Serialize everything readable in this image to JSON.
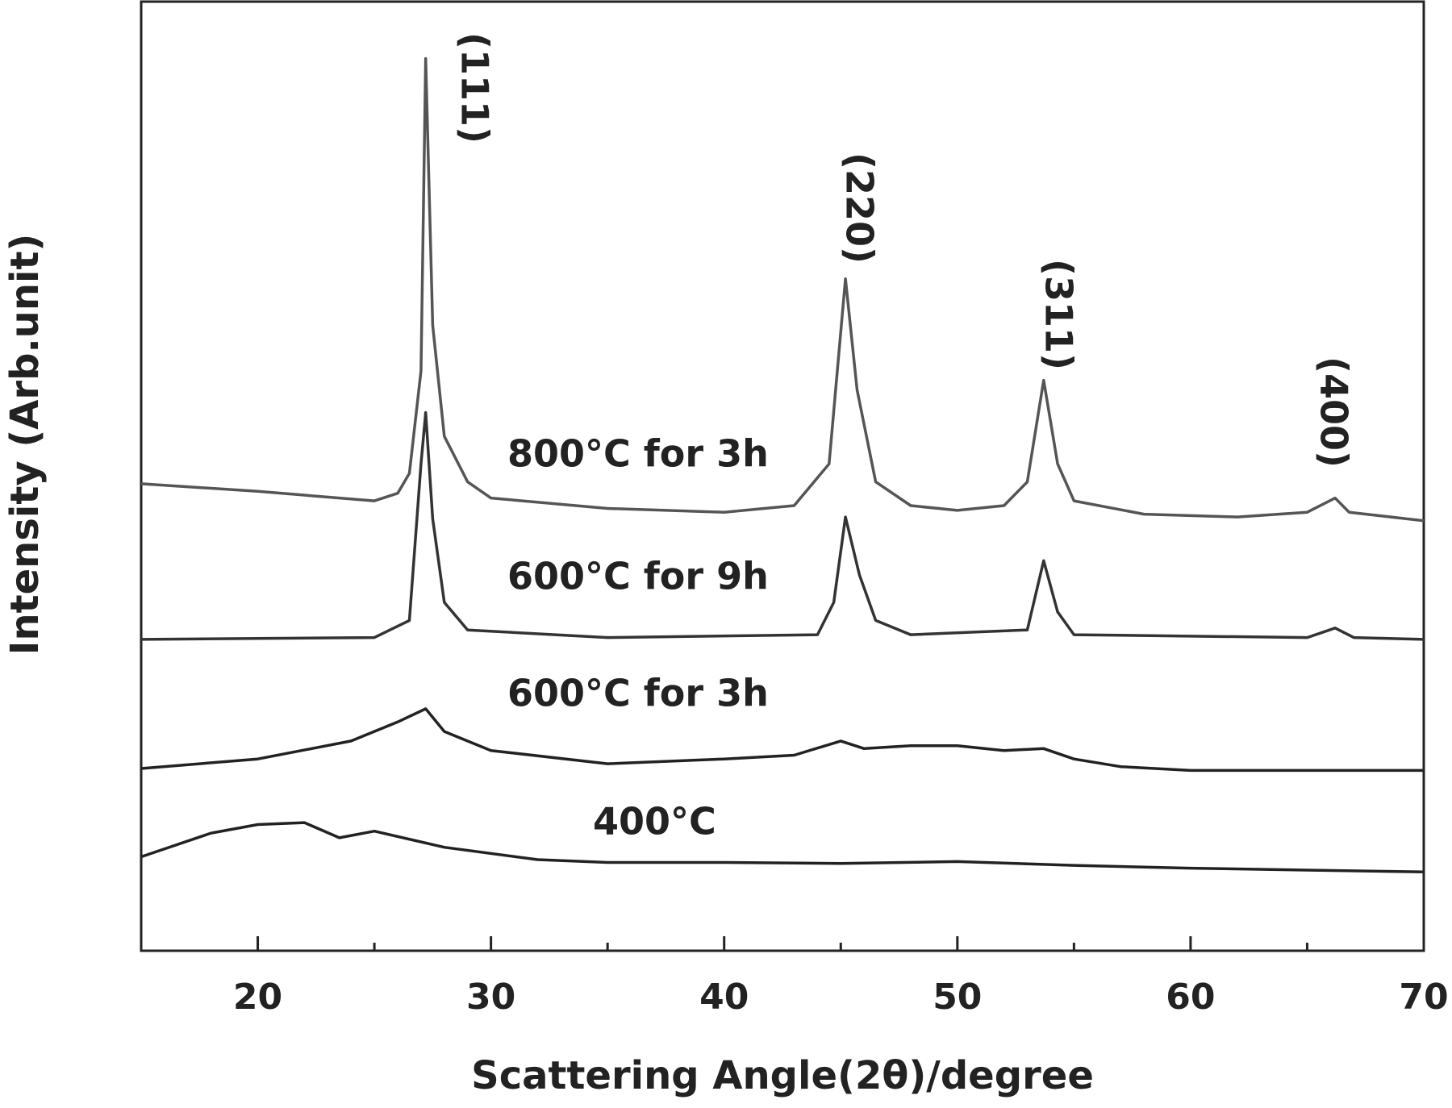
{
  "chart_data": {
    "type": "line",
    "xlabel": "Scattering Angle(2θ)/degree",
    "ylabel": "Intensity (Arb.unit)",
    "xlim": [
      15,
      70
    ],
    "ylim": [
      0,
      100
    ],
    "xticks": [
      20,
      30,
      40,
      50,
      60,
      70
    ],
    "xminorticks": [
      25,
      35,
      45,
      55,
      65
    ],
    "annotations": [
      "(111)",
      "(220)",
      "(311)",
      "(400)"
    ],
    "series": [
      {
        "name": "800°C for 3h",
        "color": "#555555",
        "x": [
          15,
          20,
          25,
          26,
          26.5,
          27,
          27.2,
          27.5,
          28,
          29,
          30,
          35,
          40,
          43,
          44.5,
          45.2,
          45.7,
          46.5,
          48,
          50,
          52,
          53,
          53.7,
          54.3,
          55,
          58,
          62,
          65,
          66.2,
          66.8,
          70
        ],
        "values": [
          49.2,
          48.4,
          47.4,
          48.2,
          50.3,
          61.1,
          94.0,
          65.9,
          54.2,
          49.4,
          47.7,
          46.6,
          46.2,
          46.9,
          51.3,
          70.8,
          59.1,
          49.4,
          46.9,
          46.4,
          46.9,
          49.4,
          60.1,
          51.3,
          47.4,
          46.0,
          45.7,
          46.2,
          47.7,
          46.2,
          45.3
        ]
      },
      {
        "name": "600°C for 9h",
        "color": "#333333",
        "x": [
          15,
          25,
          26.5,
          27,
          27.2,
          27.5,
          28,
          29,
          35,
          44,
          44.7,
          45.2,
          45.8,
          46.5,
          48,
          53,
          53.7,
          54.3,
          55,
          65,
          66.2,
          67,
          70
        ],
        "values": [
          32.8,
          33.0,
          34.8,
          51.3,
          56.7,
          45.5,
          36.7,
          33.8,
          33.0,
          33.3,
          36.7,
          45.7,
          39.6,
          34.8,
          33.3,
          33.8,
          41.1,
          35.7,
          33.3,
          33.0,
          34.0,
          33.0,
          32.8
        ]
      },
      {
        "name": "600°C for 3h",
        "color": "#222222",
        "x": [
          15,
          20,
          24,
          26,
          27.2,
          28,
          30,
          35,
          40,
          43,
          45,
          46,
          48,
          50,
          52,
          53.7,
          55,
          57,
          60,
          65,
          70
        ],
        "values": [
          19.2,
          20.2,
          22.1,
          24.1,
          25.5,
          23.1,
          21.1,
          19.7,
          20.2,
          20.6,
          22.1,
          21.3,
          21.6,
          21.6,
          21.1,
          21.3,
          20.2,
          19.4,
          19.0,
          19.0,
          19.0
        ]
      },
      {
        "name": "400°C",
        "color": "#222222",
        "x": [
          15,
          18,
          20,
          22,
          23.5,
          25,
          28,
          32,
          35,
          40,
          45,
          50,
          55,
          60,
          65,
          70
        ],
        "values": [
          9.9,
          12.4,
          13.3,
          13.5,
          11.9,
          12.6,
          10.9,
          9.6,
          9.3,
          9.3,
          9.2,
          9.4,
          9.0,
          8.7,
          8.5,
          8.3
        ]
      }
    ]
  }
}
